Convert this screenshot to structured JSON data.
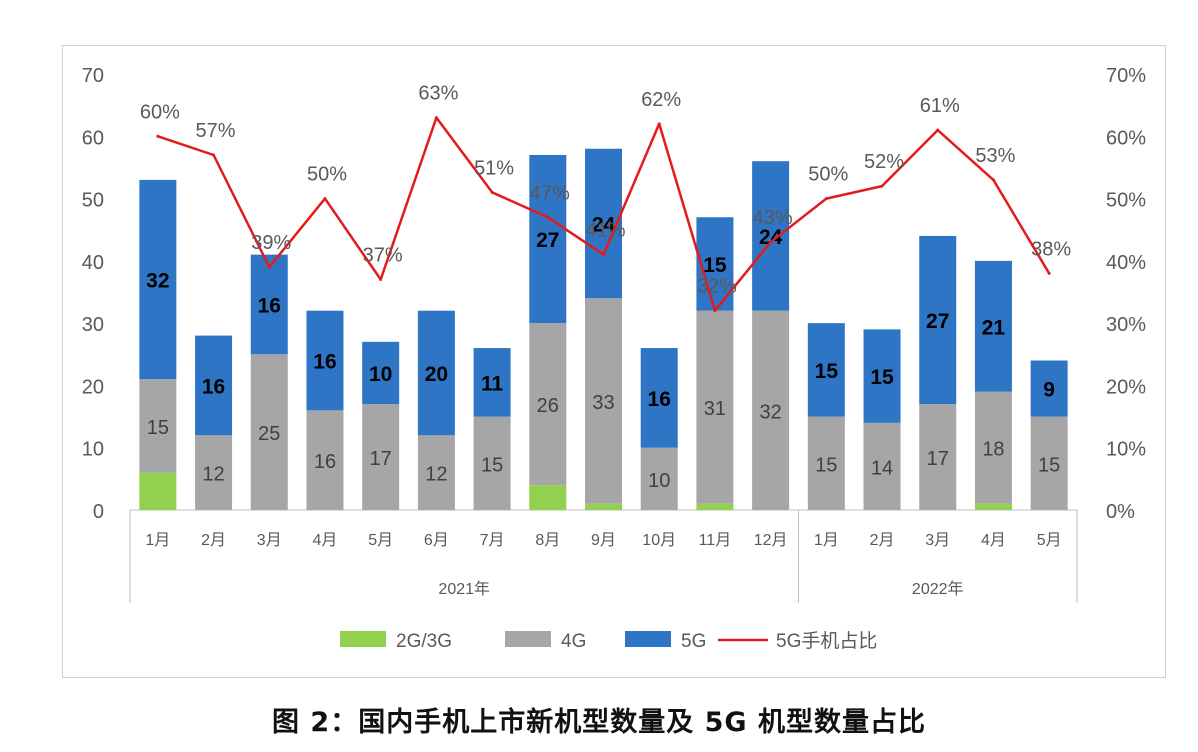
{
  "chart_data": {
    "type": "bar",
    "stacked": true,
    "categories": [
      "1月",
      "2月",
      "3月",
      "4月",
      "5月",
      "6月",
      "7月",
      "8月",
      "9月",
      "10月",
      "11月",
      "12月",
      "1月",
      "2月",
      "3月",
      "4月",
      "5月"
    ],
    "year_groups": [
      {
        "label": "2021年",
        "count": 12
      },
      {
        "label": "2022年",
        "count": 5
      }
    ],
    "series": [
      {
        "name": "2G/3G",
        "color": "#92d050",
        "values": [
          6,
          0,
          0,
          0,
          0,
          0,
          0,
          4,
          1,
          0,
          1,
          0,
          0,
          0,
          0,
          1,
          0
        ]
      },
      {
        "name": "4G",
        "color": "#a6a6a6",
        "values": [
          15,
          12,
          25,
          16,
          17,
          12,
          15,
          26,
          33,
          10,
          31,
          32,
          15,
          14,
          17,
          18,
          15
        ],
        "labels": [
          "15",
          "12",
          "25",
          "16",
          "17",
          "12",
          "15",
          "26",
          "33",
          "10",
          "31",
          "32",
          "15",
          "14",
          "17",
          "18",
          "15"
        ]
      },
      {
        "name": "5G",
        "color": "#2e75c6",
        "values": [
          32,
          16,
          16,
          16,
          10,
          20,
          11,
          27,
          24,
          16,
          15,
          24,
          15,
          15,
          27,
          21,
          9
        ],
        "labels": [
          "32",
          "16",
          "16",
          "16",
          "10",
          "20",
          "11",
          "27",
          "24",
          "16",
          "15",
          "24",
          "15",
          "15",
          "27",
          "21",
          "9"
        ]
      }
    ],
    "line": {
      "name": "5G手机占比",
      "color": "#e41b1b",
      "values": [
        60,
        57,
        39,
        50,
        37,
        63,
        51,
        47,
        41,
        62,
        32,
        43,
        50,
        52,
        61,
        53,
        38
      ],
      "labels": [
        "60%",
        "57%",
        "39%",
        "50%",
        "37%",
        "63%",
        "51%",
        "47%",
        "41%",
        "62%",
        "32%",
        "43%",
        "50%",
        "52%",
        "61%",
        "53%",
        "38%"
      ]
    },
    "y_left": {
      "min": 0,
      "max": 70,
      "ticks": [
        "0",
        "10",
        "20",
        "30",
        "40",
        "50",
        "60",
        "70"
      ]
    },
    "y_right": {
      "min": 0,
      "max": 70,
      "ticks": [
        "0%",
        "10%",
        "20%",
        "30%",
        "40%",
        "50%",
        "60%",
        "70%"
      ]
    },
    "legend_position": "bottom",
    "title": "图 2：国内手机上市新机型数量及 5G 机型数量占比"
  }
}
